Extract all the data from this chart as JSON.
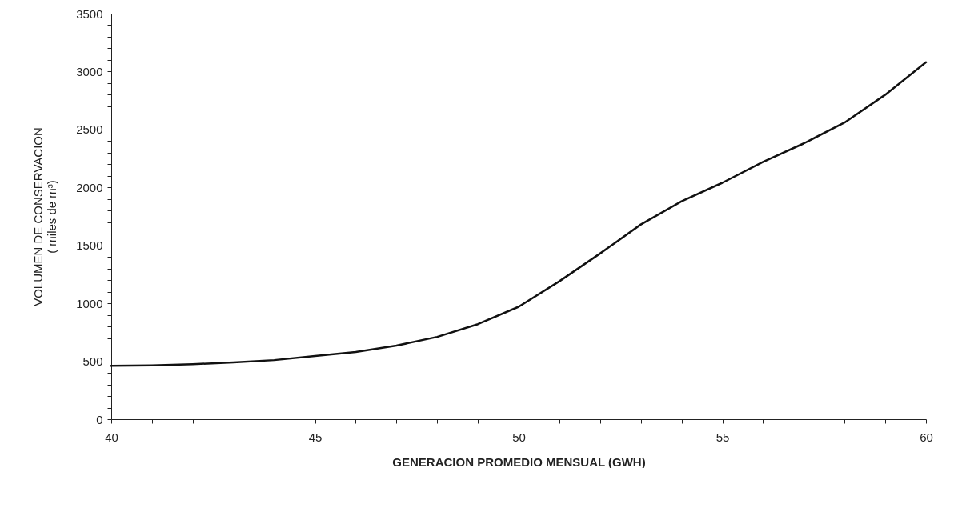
{
  "chart_data": {
    "type": "line",
    "xlabel": "GENERACION PROMEDIO MENSUAL (GWH)",
    "ylabel": [
      "VOLUMEN DE CONSERVACION",
      "( miles de m³)"
    ],
    "x": [
      40,
      41,
      42,
      43,
      44,
      45,
      46,
      47,
      48,
      49,
      50,
      51,
      52,
      53,
      54,
      55,
      56,
      57,
      58,
      59,
      60
    ],
    "series": [
      {
        "color": "#111111",
        "values": [
          460,
          465,
          475,
          490,
          510,
          545,
          580,
          635,
          710,
          820,
          970,
          1190,
          1430,
          1680,
          1880,
          2040,
          2220,
          2380,
          2560,
          2800,
          3080
        ]
      }
    ],
    "xlim": [
      40,
      60
    ],
    "xticks": [
      40,
      {
        "value": 41,
        "label": null
      },
      {
        "value": 42,
        "label": null
      },
      {
        "value": 43,
        "label": null
      },
      {
        "value": 44,
        "label": null
      },
      45,
      {
        "value": 46,
        "label": null
      },
      {
        "value": 47,
        "label": null
      },
      {
        "value": 48,
        "label": null
      },
      {
        "value": 49,
        "label": null
      },
      50,
      {
        "value": 51,
        "label": null
      },
      {
        "value": 52,
        "label": null
      },
      {
        "value": 53,
        "label": null
      },
      {
        "value": 54,
        "label": null
      },
      55,
      {
        "value": 56,
        "label": null
      },
      {
        "value": 57,
        "label": null
      },
      {
        "value": 58,
        "label": null
      },
      {
        "value": 59,
        "label": null
      },
      60
    ],
    "ylim": [
      0,
      3500
    ],
    "yticks": [
      0,
      {
        "value": 100,
        "label": null
      },
      {
        "value": 200,
        "label": null
      },
      {
        "value": 300,
        "label": null
      },
      {
        "value": 400,
        "label": null
      },
      500,
      {
        "value": 600,
        "label": null
      },
      {
        "value": 700,
        "label": null
      },
      {
        "value": 800,
        "label": null
      },
      {
        "value": 900,
        "label": null
      },
      1000,
      {
        "value": 1100,
        "label": null
      },
      {
        "value": 1200,
        "label": null
      },
      {
        "value": 1300,
        "label": null
      },
      {
        "value": 1400,
        "label": null
      },
      1500,
      {
        "value": 1600,
        "label": null
      },
      {
        "value": 1700,
        "label": null
      },
      {
        "value": 1800,
        "label": null
      },
      {
        "value": 1900,
        "label": null
      },
      2000,
      {
        "value": 2100,
        "label": null
      },
      {
        "value": 2200,
        "label": null
      },
      {
        "value": 2300,
        "label": null
      },
      {
        "value": 2400,
        "label": null
      },
      2500,
      {
        "value": 2600,
        "label": null
      },
      {
        "value": 2700,
        "label": null
      },
      {
        "value": 2800,
        "label": null
      },
      {
        "value": 2900,
        "label": null
      },
      3000,
      {
        "value": 3100,
        "label": null
      },
      {
        "value": 3200,
        "label": null
      },
      {
        "value": 3300,
        "label": null
      },
      {
        "value": 3400,
        "label": null
      },
      3500
    ],
    "grid": false,
    "marker": "none",
    "line_style": "solid"
  }
}
